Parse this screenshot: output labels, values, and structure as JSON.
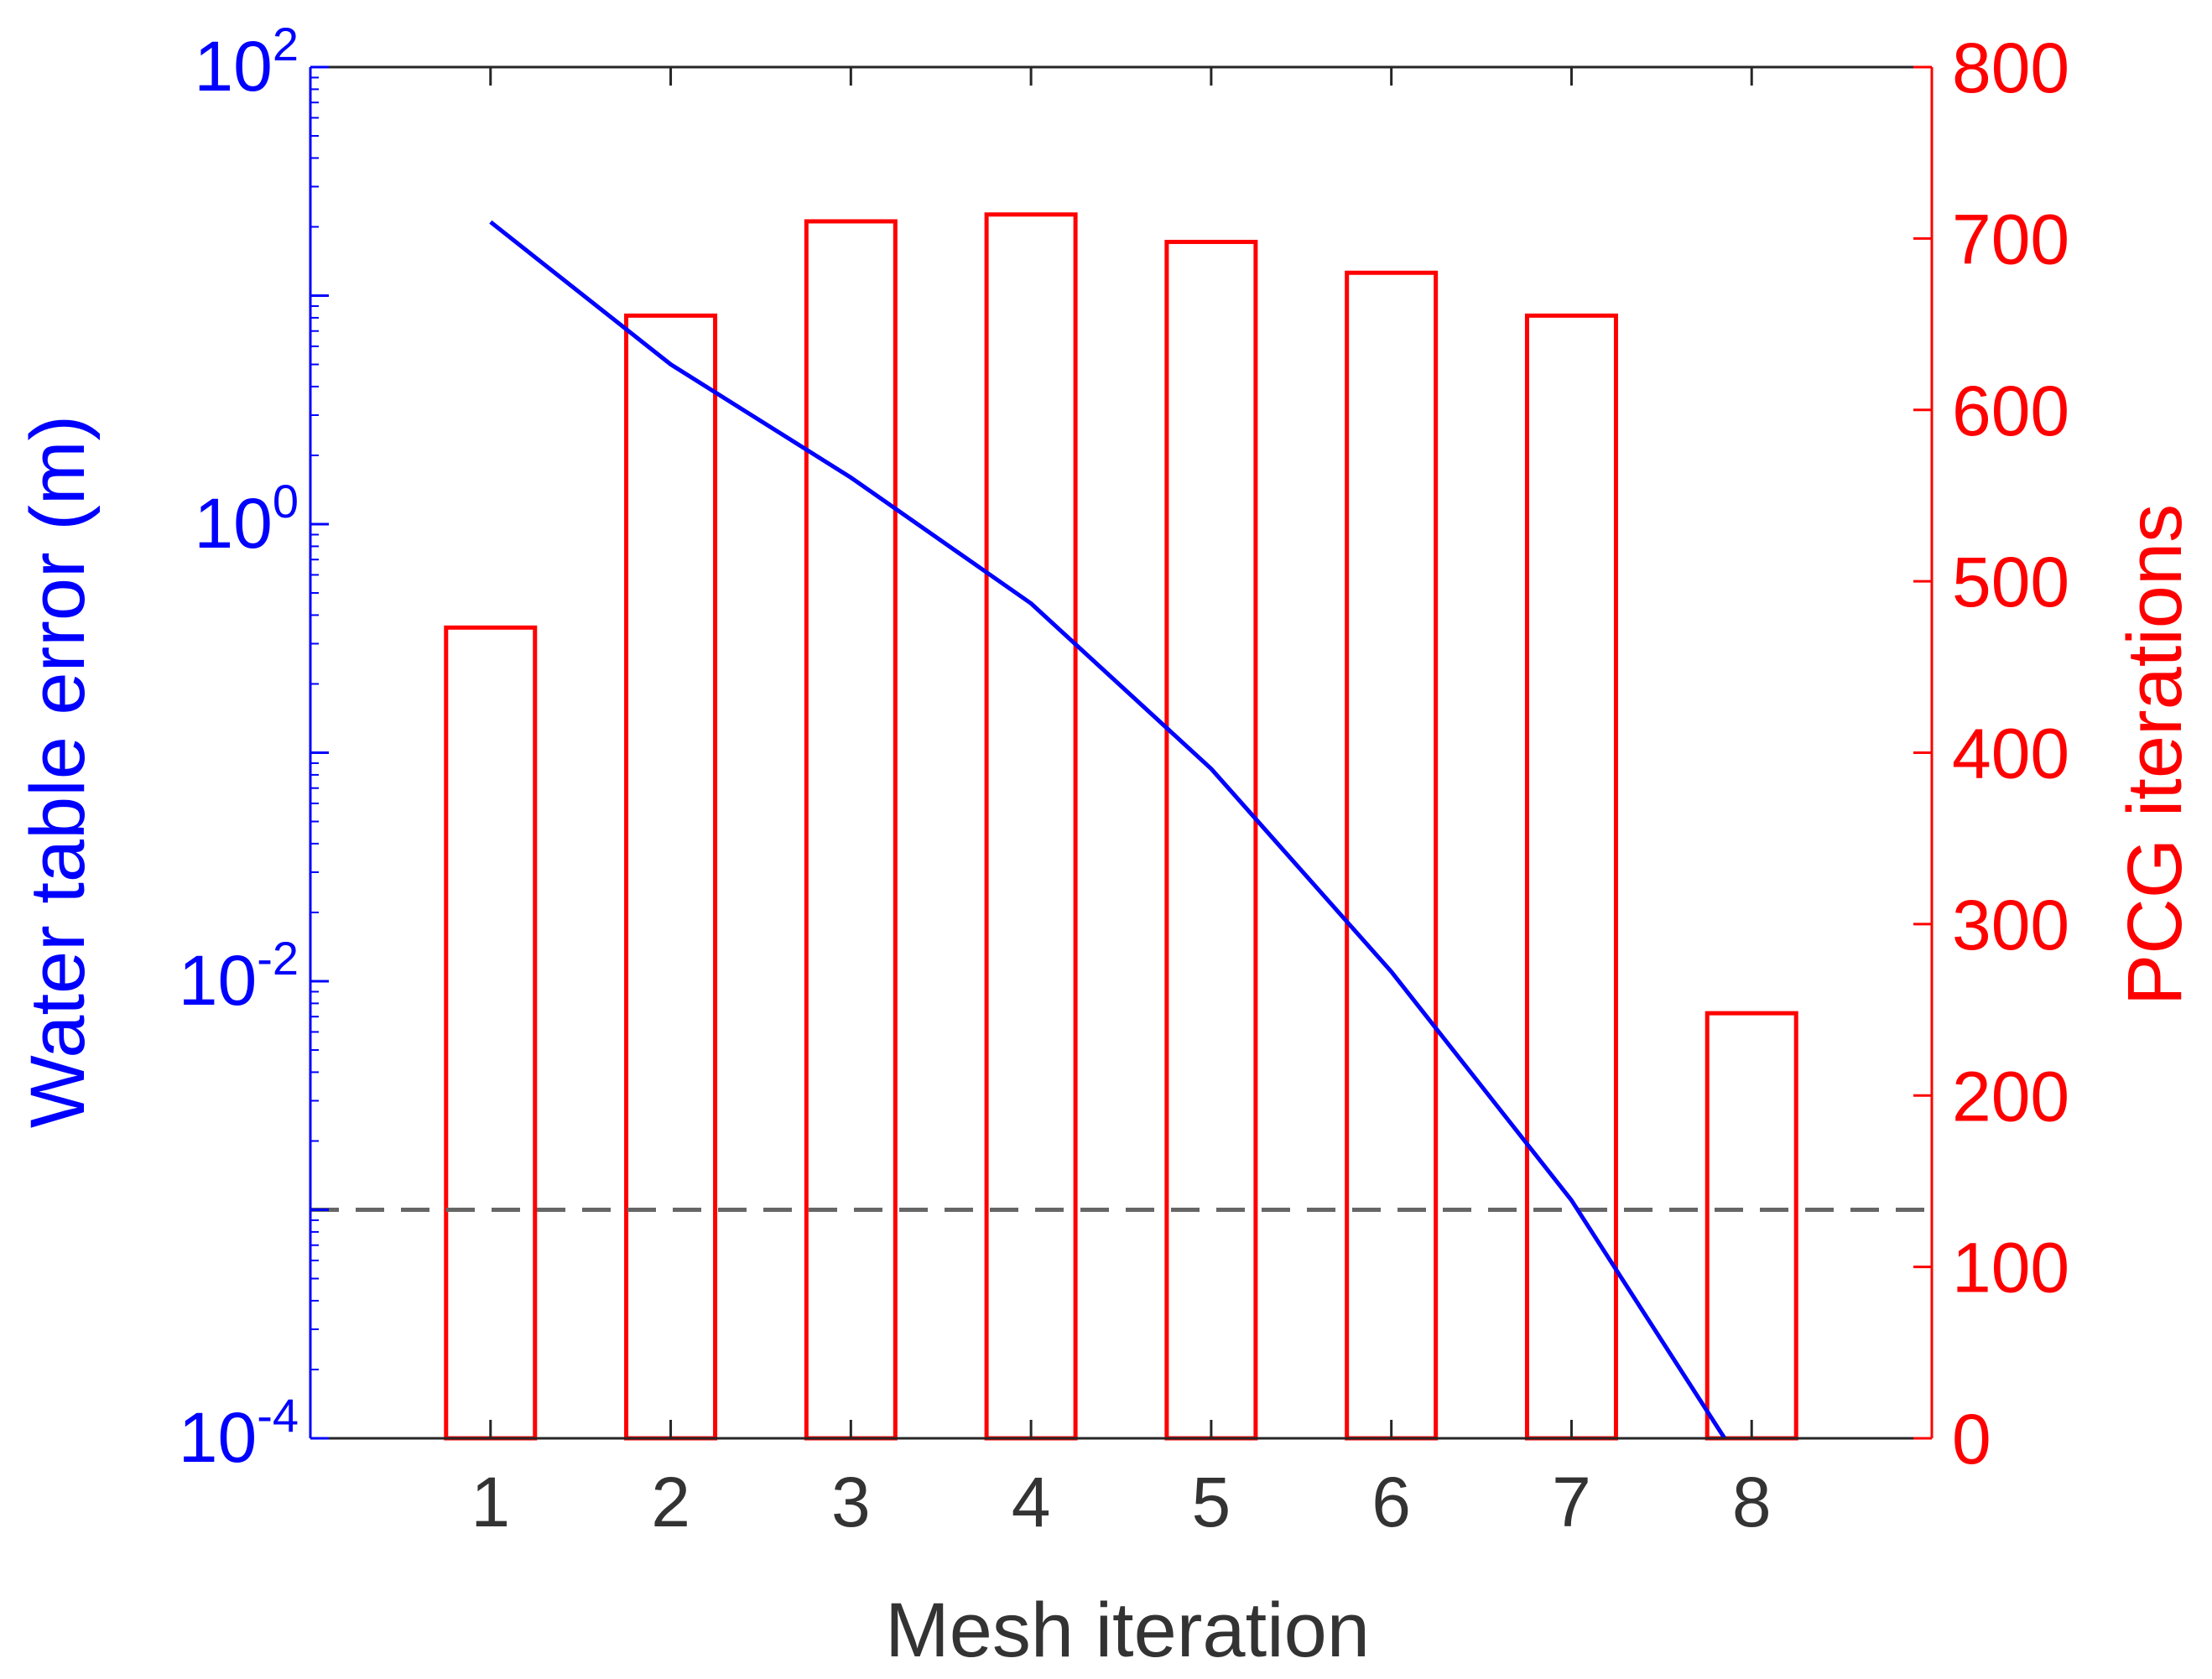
{
  "chart_data": {
    "type": "bar+line",
    "xlabel": "Mesh iteration",
    "xlim": [
      0,
      9
    ],
    "categories": [
      "1",
      "2",
      "3",
      "4",
      "5",
      "6",
      "7",
      "8"
    ],
    "x": [
      1,
      2,
      3,
      4,
      5,
      6,
      7,
      8
    ],
    "left_axis": {
      "label": "Water table error (m)",
      "scale": "log",
      "ylim": [
        0.0001,
        100
      ],
      "ticks": [
        {
          "base": "10",
          "exp": "2",
          "value": 100
        },
        {
          "base": "10",
          "exp": "0",
          "value": 1
        },
        {
          "base": "10",
          "exp": "-2",
          "value": 0.01
        },
        {
          "base": "10",
          "exp": "-4",
          "value": 0.0001
        }
      ],
      "color": "#0000ff"
    },
    "right_axis": {
      "label": "PCG iterations",
      "scale": "linear",
      "ylim": [
        0,
        800
      ],
      "ticks": [
        "0",
        "100",
        "200",
        "300",
        "400",
        "500",
        "600",
        "700",
        "800"
      ],
      "color": "#ff0000"
    },
    "bars": {
      "axis": "right",
      "color": "#ff0000",
      "fill": "none",
      "values": [
        473,
        655,
        710,
        714,
        698,
        680,
        655,
        248
      ]
    },
    "line": {
      "axis": "left",
      "color": "#0000ff",
      "points": [
        {
          "x": 1,
          "y": 21
        },
        {
          "x": 2,
          "y": 5
        },
        {
          "x": 3,
          "y": 1.6
        },
        {
          "x": 4,
          "y": 0.45
        },
        {
          "x": 5,
          "y": 0.085
        },
        {
          "x": 6,
          "y": 0.011
        },
        {
          "x": 7,
          "y": 0.0011
        },
        {
          "x": 7.85,
          "y": 0.0001
        }
      ]
    },
    "reference_line": {
      "axis": "left",
      "y": 0.001,
      "style": "dashed",
      "color": "#666666"
    },
    "grid": false,
    "legend": "none"
  }
}
